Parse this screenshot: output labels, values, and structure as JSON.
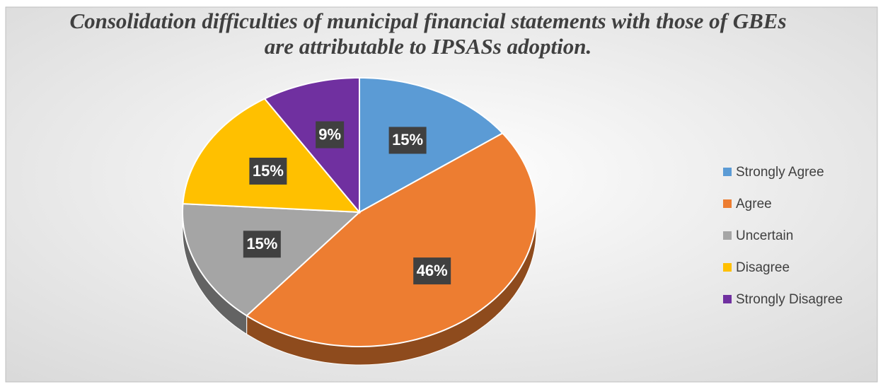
{
  "chart_data": {
    "type": "pie",
    "title": "Consolidation difficulties of municipal financial statements with those of GBEs are attributable to IPSASs adoption.",
    "categories": [
      "Strongly Agree",
      "Agree",
      "Uncertain",
      "Disagree",
      "Strongly Disagree"
    ],
    "values": [
      15,
      46,
      15,
      15,
      9
    ],
    "value_labels": [
      "15%",
      "46%",
      "15%",
      "15%",
      "9%"
    ],
    "colors": [
      "#5b9bd5",
      "#ed7d31",
      "#a5a5a5",
      "#ffc000",
      "#7030a0"
    ],
    "legend": "right"
  }
}
